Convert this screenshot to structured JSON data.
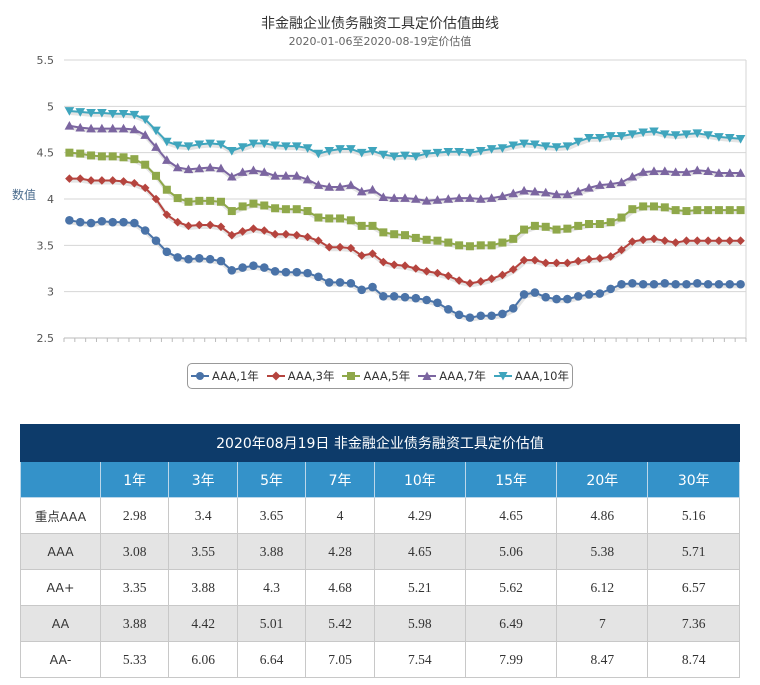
{
  "chart_data": {
    "type": "line",
    "title": "非金融企业债务融资工具定价估值曲线",
    "subtitle": "2020-01-06至2020-08-19定价估值",
    "ylabel": "数值",
    "ylim": [
      2.5,
      5.5
    ],
    "yticks": [
      "2.5",
      "3",
      "3.5",
      "4",
      "4.5",
      "5",
      "5.5"
    ],
    "grid": true,
    "legend_position": "bottom",
    "series": [
      {
        "name": "AAA,1年",
        "color": "#4a73a8",
        "marker": "circle",
        "values": [
          3.77,
          3.75,
          3.74,
          3.76,
          3.75,
          3.75,
          3.74,
          3.66,
          3.55,
          3.43,
          3.37,
          3.35,
          3.36,
          3.35,
          3.33,
          3.23,
          3.26,
          3.28,
          3.26,
          3.22,
          3.21,
          3.21,
          3.2,
          3.16,
          3.1,
          3.1,
          3.09,
          3.02,
          3.05,
          2.95,
          2.95,
          2.94,
          2.93,
          2.91,
          2.88,
          2.81,
          2.75,
          2.72,
          2.74,
          2.74,
          2.76,
          2.82,
          2.97,
          2.99,
          2.94,
          2.92,
          2.92,
          2.95,
          2.97,
          2.98,
          3.03,
          3.08,
          3.09,
          3.08,
          3.08,
          3.09,
          3.08,
          3.08,
          3.09,
          3.08,
          3.08,
          3.08,
          3.08
        ]
      },
      {
        "name": "AAA,3年",
        "color": "#b5443e",
        "marker": "diamond",
        "values": [
          4.22,
          4.22,
          4.2,
          4.2,
          4.2,
          4.19,
          4.17,
          4.12,
          4.0,
          3.83,
          3.75,
          3.71,
          3.72,
          3.72,
          3.7,
          3.61,
          3.65,
          3.68,
          3.66,
          3.62,
          3.62,
          3.61,
          3.59,
          3.55,
          3.48,
          3.48,
          3.47,
          3.39,
          3.41,
          3.32,
          3.29,
          3.28,
          3.25,
          3.22,
          3.2,
          3.17,
          3.12,
          3.09,
          3.11,
          3.14,
          3.18,
          3.24,
          3.34,
          3.34,
          3.31,
          3.31,
          3.31,
          3.33,
          3.35,
          3.36,
          3.38,
          3.45,
          3.54,
          3.56,
          3.57,
          3.55,
          3.53,
          3.55,
          3.55,
          3.55,
          3.55,
          3.55,
          3.55
        ]
      },
      {
        "name": "AAA,5年",
        "color": "#8fa84a",
        "marker": "square",
        "values": [
          4.5,
          4.49,
          4.47,
          4.46,
          4.46,
          4.45,
          4.43,
          4.37,
          4.25,
          4.1,
          4.01,
          3.97,
          3.98,
          3.98,
          3.97,
          3.87,
          3.92,
          3.95,
          3.93,
          3.9,
          3.89,
          3.89,
          3.87,
          3.8,
          3.79,
          3.79,
          3.77,
          3.71,
          3.71,
          3.64,
          3.62,
          3.61,
          3.58,
          3.56,
          3.55,
          3.53,
          3.5,
          3.49,
          3.5,
          3.5,
          3.53,
          3.57,
          3.67,
          3.71,
          3.7,
          3.67,
          3.68,
          3.71,
          3.73,
          3.73,
          3.75,
          3.8,
          3.89,
          3.92,
          3.92,
          3.91,
          3.88,
          3.87,
          3.88,
          3.88,
          3.88,
          3.88,
          3.88
        ]
      },
      {
        "name": "AAA,7年",
        "color": "#7b65a0",
        "marker": "triangle-up",
        "values": [
          4.79,
          4.77,
          4.76,
          4.76,
          4.76,
          4.76,
          4.75,
          4.69,
          4.56,
          4.42,
          4.34,
          4.32,
          4.33,
          4.34,
          4.33,
          4.24,
          4.29,
          4.31,
          4.29,
          4.25,
          4.25,
          4.25,
          4.21,
          4.15,
          4.13,
          4.13,
          4.15,
          4.08,
          4.1,
          4.02,
          4.01,
          4.01,
          4.0,
          3.98,
          3.99,
          4.0,
          4.01,
          4.01,
          4.0,
          4.01,
          4.03,
          4.06,
          4.09,
          4.08,
          4.07,
          4.05,
          4.05,
          4.08,
          4.12,
          4.15,
          4.16,
          4.18,
          4.24,
          4.29,
          4.3,
          4.3,
          4.29,
          4.29,
          4.31,
          4.3,
          4.28,
          4.28,
          4.28
        ]
      },
      {
        "name": "AAA,10年",
        "color": "#3fa5bd",
        "marker": "triangle-down",
        "values": [
          4.95,
          4.94,
          4.93,
          4.93,
          4.92,
          4.92,
          4.91,
          4.86,
          4.74,
          4.62,
          4.58,
          4.57,
          4.59,
          4.6,
          4.59,
          4.52,
          4.56,
          4.6,
          4.6,
          4.58,
          4.57,
          4.57,
          4.55,
          4.49,
          4.52,
          4.54,
          4.54,
          4.5,
          4.52,
          4.48,
          4.46,
          4.47,
          4.46,
          4.49,
          4.5,
          4.51,
          4.51,
          4.5,
          4.52,
          4.54,
          4.55,
          4.58,
          4.6,
          4.59,
          4.57,
          4.56,
          4.57,
          4.62,
          4.66,
          4.66,
          4.68,
          4.68,
          4.7,
          4.72,
          4.73,
          4.7,
          4.69,
          4.7,
          4.71,
          4.69,
          4.67,
          4.66,
          4.65
        ]
      }
    ]
  },
  "table": {
    "title": "2020年08月19日  非金融企业债务融资工具定价估值",
    "columns": [
      "",
      "1年",
      "3年",
      "5年",
      "7年",
      "10年",
      "15年",
      "20年",
      "30年"
    ],
    "rows": [
      {
        "label": "重点AAA",
        "values": [
          "2.98",
          "3.4",
          "3.65",
          "4",
          "4.29",
          "4.65",
          "4.86",
          "5.16"
        ]
      },
      {
        "label": "AAA",
        "values": [
          "3.08",
          "3.55",
          "3.88",
          "4.28",
          "4.65",
          "5.06",
          "5.38",
          "5.71"
        ]
      },
      {
        "label": "AA+",
        "values": [
          "3.35",
          "3.88",
          "4.3",
          "4.68",
          "5.21",
          "5.62",
          "6.12",
          "6.57"
        ]
      },
      {
        "label": "AA",
        "values": [
          "3.88",
          "4.42",
          "5.01",
          "5.42",
          "5.98",
          "6.49",
          "7",
          "7.36"
        ]
      },
      {
        "label": "AA-",
        "values": [
          "5.33",
          "6.06",
          "6.64",
          "7.05",
          "7.54",
          "7.99",
          "8.47",
          "8.74"
        ]
      }
    ]
  }
}
